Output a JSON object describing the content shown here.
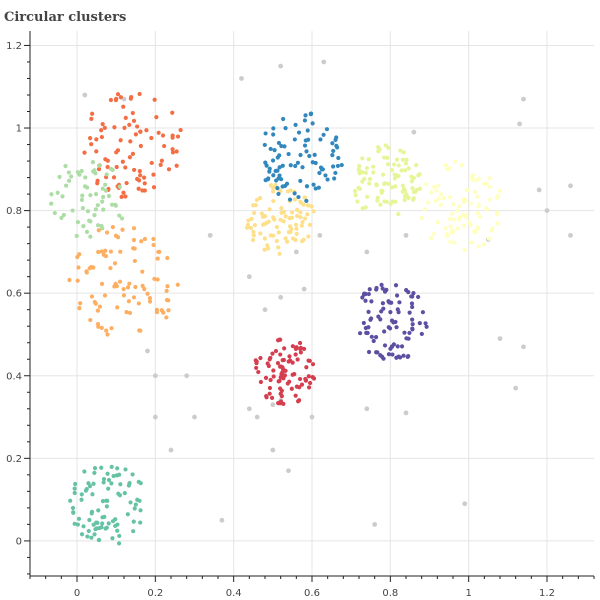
{
  "chart_data": {
    "type": "scatter",
    "title": "Circular clusters",
    "xlabel": "",
    "ylabel": "",
    "xlim": [
      -0.12,
      1.32
    ],
    "ylim": [
      -0.085,
      1.235
    ],
    "x_ticks": [
      0,
      0.2,
      0.4,
      0.6,
      0.8,
      1,
      1.2
    ],
    "x_tick_labels": [
      "0",
      "0.2",
      "0.4",
      "0.6",
      "0.8",
      "1",
      "1.2"
    ],
    "y_ticks": [
      0,
      0.2,
      0.4,
      0.6,
      0.8,
      1,
      1.2
    ],
    "y_tick_labels": [
      "0",
      "0.2",
      "0.4",
      "0.6",
      "0.8",
      "1",
      "1.2"
    ],
    "grid": true,
    "legend": "none",
    "series": [
      {
        "color": "#66c2a5",
        "center": [
          0.08,
          0.09
        ],
        "radius": 0.1,
        "points": 90
      },
      {
        "color": "#f46d43",
        "center": [
          0.14,
          0.96
        ],
        "radius": 0.13,
        "points": 90
      },
      {
        "color": "#abdda4",
        "center": [
          0.03,
          0.83
        ],
        "radius": 0.1,
        "points": 60
      },
      {
        "color": "#fdae61",
        "center": [
          0.12,
          0.63
        ],
        "radius": 0.14,
        "points": 90
      },
      {
        "color": "#fee08b",
        "center": [
          0.52,
          0.78
        ],
        "radius": 0.09,
        "points": 90
      },
      {
        "color": "#3288bd",
        "center": [
          0.57,
          0.93
        ],
        "radius": 0.11,
        "points": 90
      },
      {
        "color": "#e6f598",
        "center": [
          0.79,
          0.87
        ],
        "radius": 0.09,
        "points": 90
      },
      {
        "color": "#ffffbf",
        "center": [
          0.98,
          0.81
        ],
        "radius": 0.11,
        "points": 90
      },
      {
        "color": "#5e4fa2",
        "center": [
          0.8,
          0.53
        ],
        "radius": 0.1,
        "points": 90
      },
      {
        "color": "#d53e4f",
        "center": [
          0.53,
          0.41
        ],
        "radius": 0.08,
        "points": 90
      }
    ],
    "outliers": {
      "color": "#cccccc",
      "points": [
        [
          0.02,
          1.08
        ],
        [
          0.12,
          1.07
        ],
        [
          0.42,
          1.12
        ],
        [
          0.52,
          1.15
        ],
        [
          0.63,
          1.16
        ],
        [
          0.34,
          0.74
        ],
        [
          0.48,
          0.56
        ],
        [
          0.52,
          0.59
        ],
        [
          0.58,
          0.61
        ],
        [
          0.56,
          0.7
        ],
        [
          0.62,
          0.74
        ],
        [
          0.44,
          0.64
        ],
        [
          0.86,
          0.99
        ],
        [
          0.74,
          0.7
        ],
        [
          0.84,
          0.74
        ],
        [
          0.18,
          0.46
        ],
        [
          0.2,
          0.4
        ],
        [
          0.28,
          0.4
        ],
        [
          0.2,
          0.3
        ],
        [
          0.3,
          0.3
        ],
        [
          0.44,
          0.32
        ],
        [
          0.46,
          0.3
        ],
        [
          0.52,
          0.34
        ],
        [
          0.5,
          0.33
        ],
        [
          0.6,
          0.3
        ],
        [
          0.74,
          0.32
        ],
        [
          0.84,
          0.31
        ],
        [
          0.24,
          0.22
        ],
        [
          0.5,
          0.22
        ],
        [
          0.54,
          0.17
        ],
        [
          0.37,
          0.05
        ],
        [
          0.76,
          0.04
        ],
        [
          0.99,
          0.09
        ],
        [
          1.12,
          0.37
        ],
        [
          1.14,
          0.47
        ],
        [
          1.08,
          0.49
        ],
        [
          1.14,
          1.07
        ],
        [
          1.13,
          1.01
        ],
        [
          1.18,
          0.85
        ],
        [
          1.26,
          0.86
        ],
        [
          1.2,
          0.8
        ],
        [
          1.26,
          0.74
        ],
        [
          1.05,
          0.73
        ]
      ]
    }
  }
}
